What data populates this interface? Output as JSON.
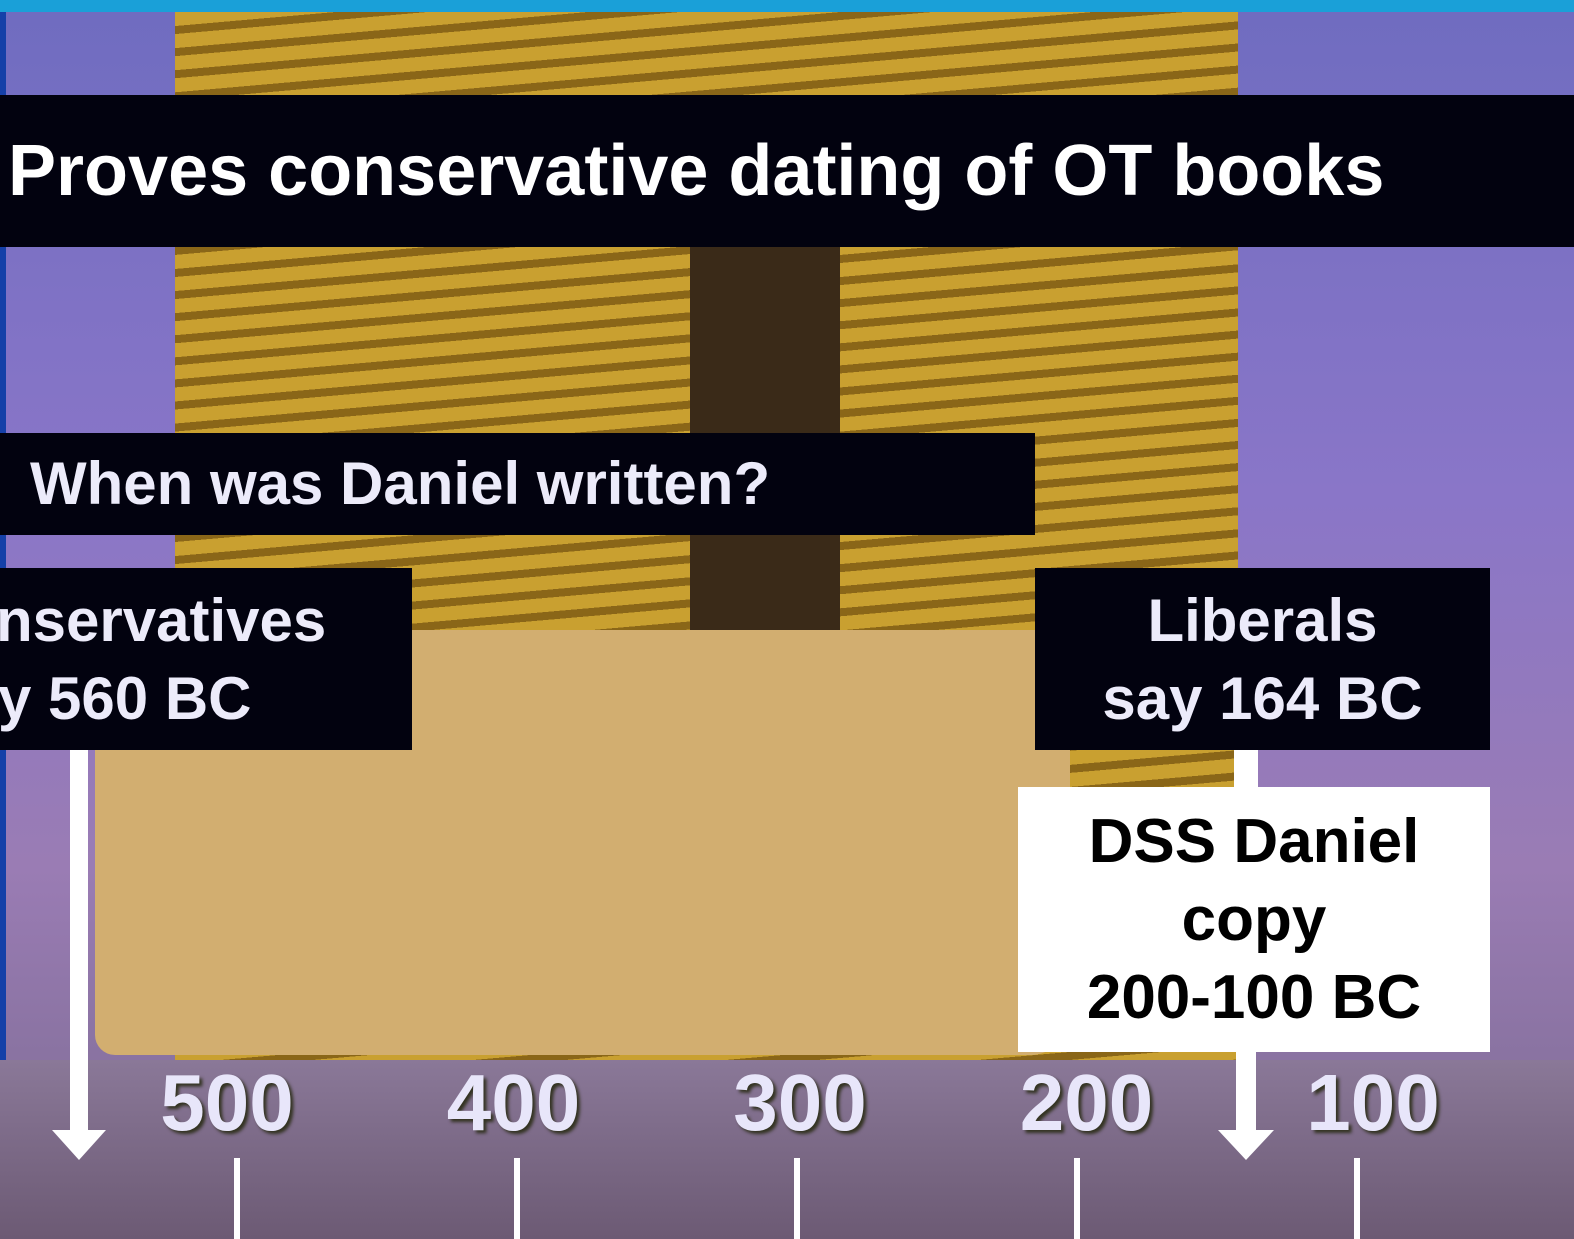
{
  "title": "Proves conservative dating of OT books",
  "question": "When was Daniel written?",
  "conservatives": {
    "line1": "nservatives",
    "line2": "y 560 BC"
  },
  "liberals": {
    "line1": "Liberals",
    "line2": "say 164 BC"
  },
  "dss": {
    "line1": "DSS Daniel",
    "line2": "copy",
    "line3": "200-100 BC"
  },
  "timeline": {
    "labels": [
      "500",
      "400",
      "300",
      "200",
      "100"
    ]
  }
}
